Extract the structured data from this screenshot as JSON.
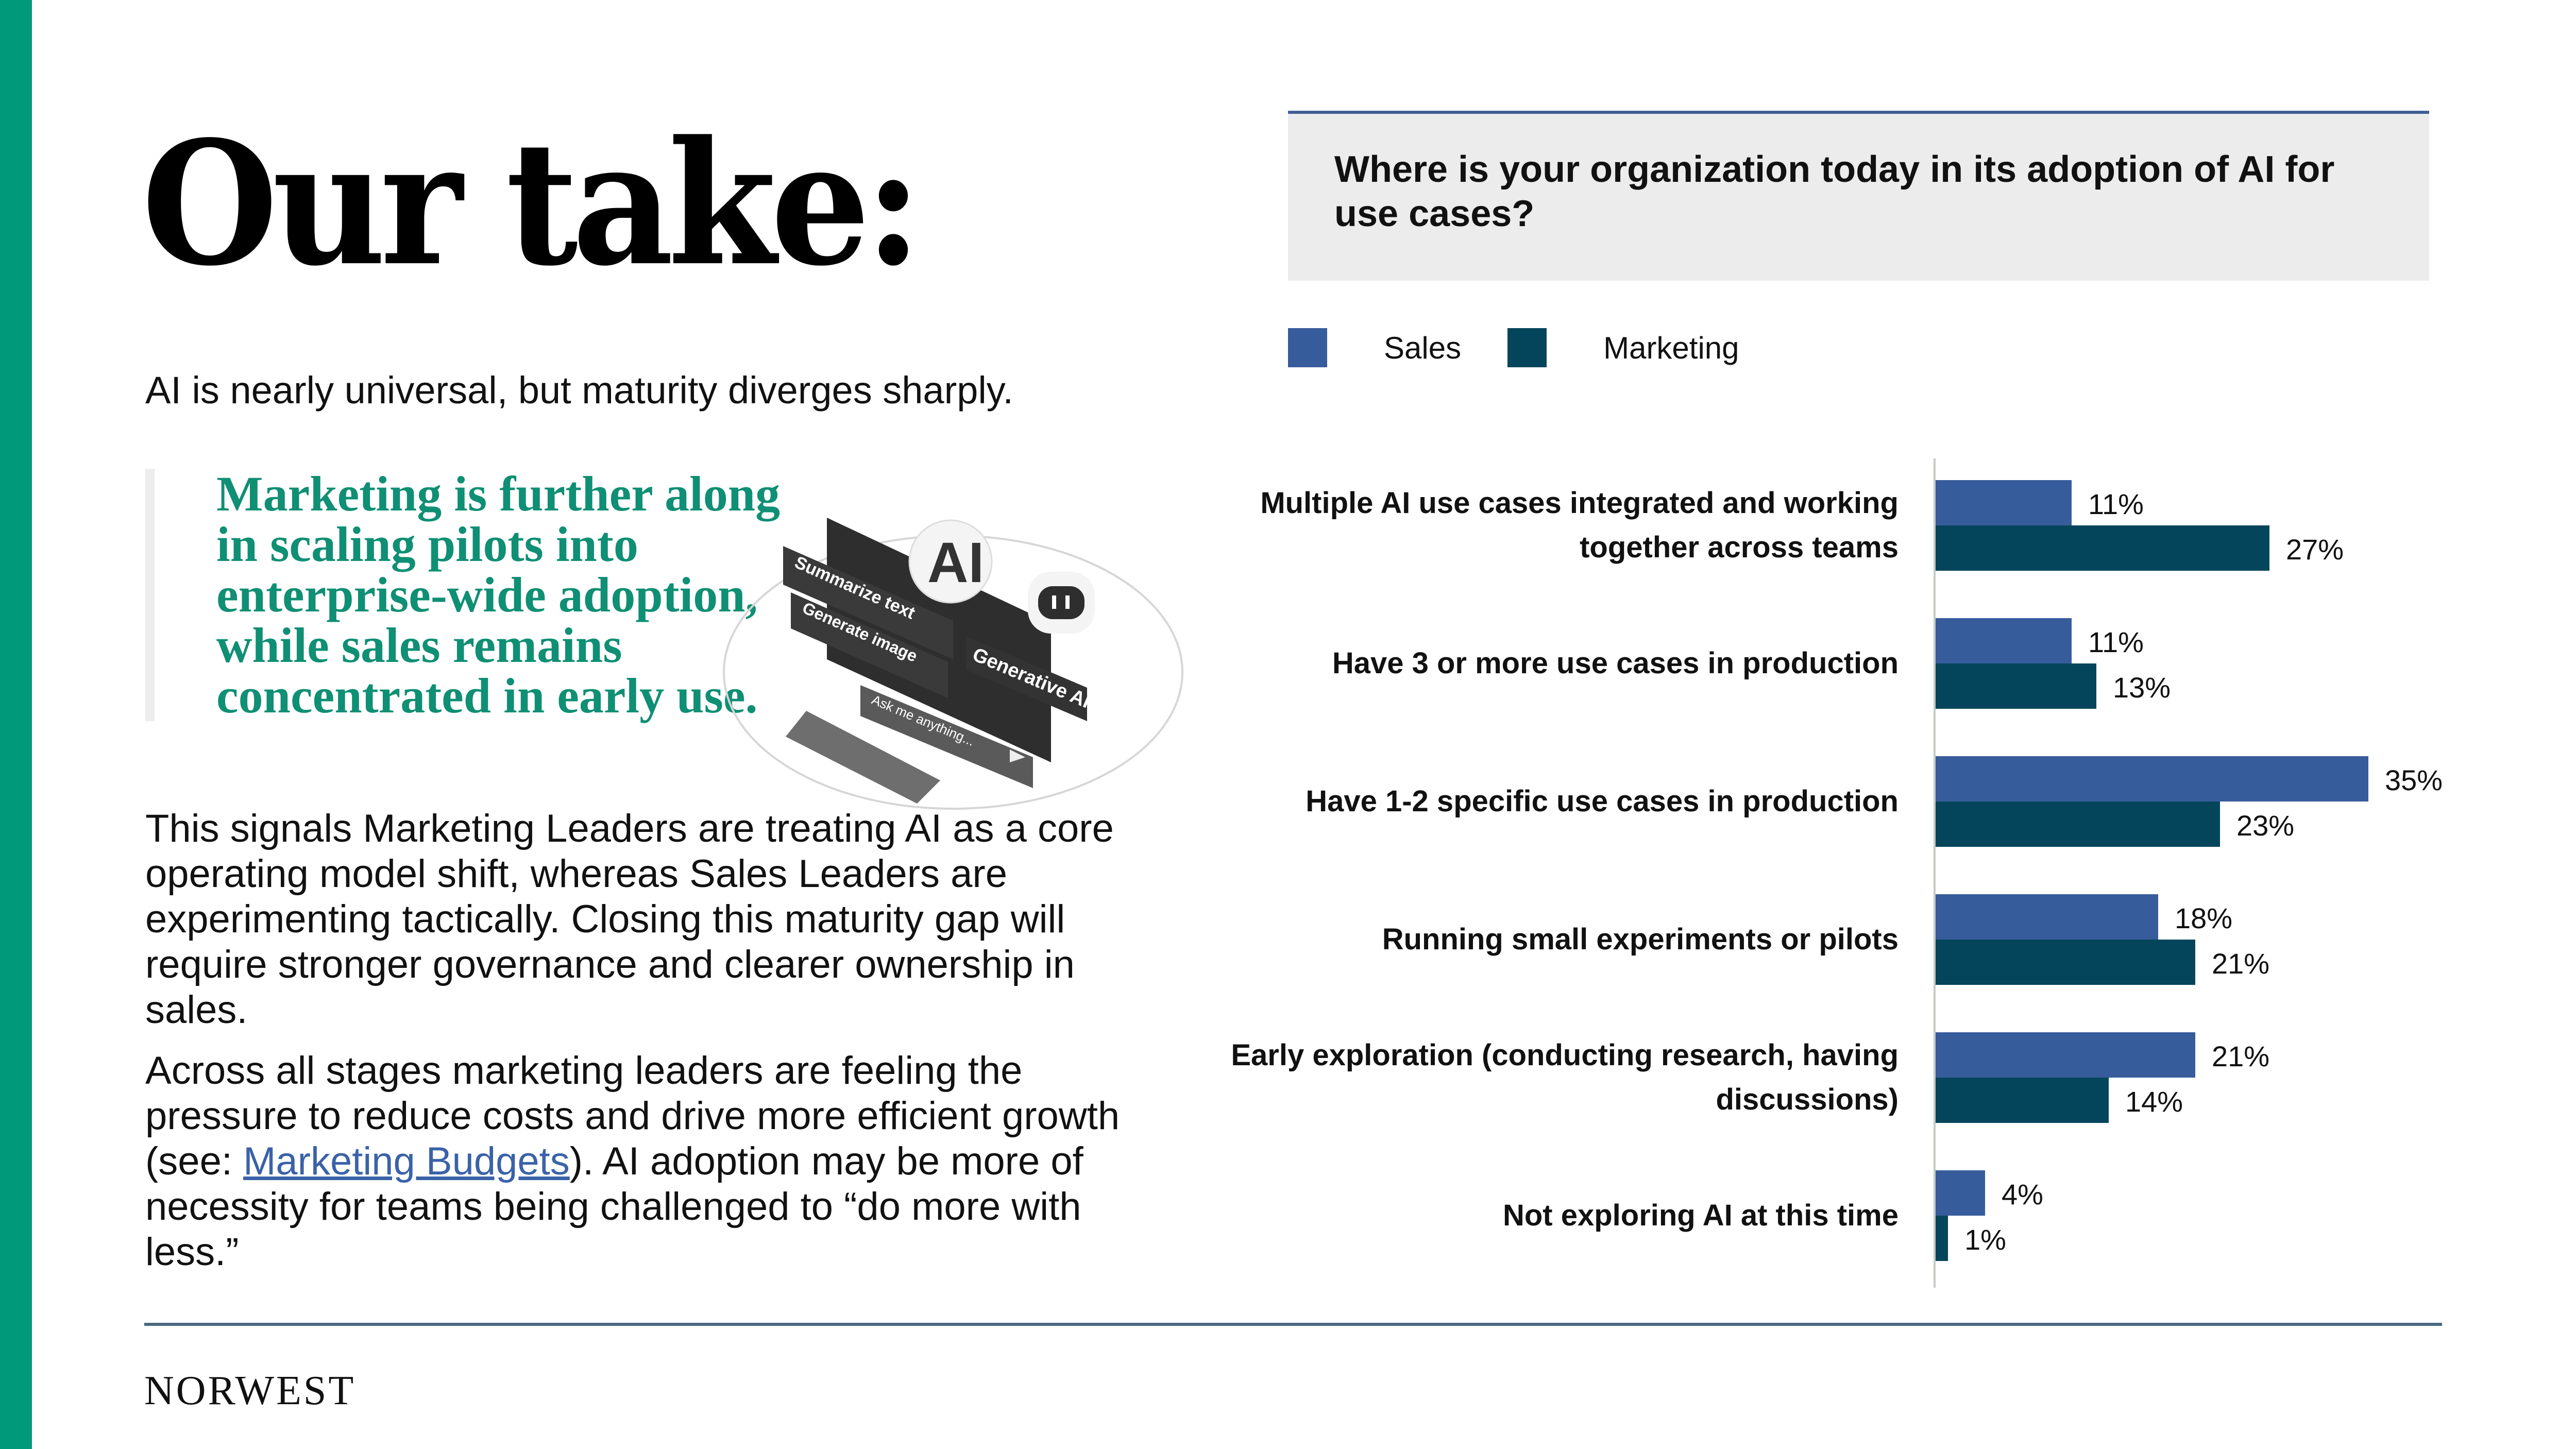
{
  "page": {
    "title": "Our take:",
    "subtitle": "AI is nearly universal, but maturity diverges sharply.",
    "quote": "Marketing is further along in scaling pilots into enterprise-wide adoption, while sales remains concentrated in early use.",
    "paragraph1": "This signals Marketing Leaders are treating AI as a core operating model shift, whereas Sales Leaders are experimenting tactically. Closing this maturity gap will require stronger governance and clearer ownership in sales.",
    "paragraph2_before": "Across all stages marketing leaders are feeling the pressure to reduce costs and drive more efficient growth (see: ",
    "paragraph2_link": "Marketing Budgets",
    "paragraph2_after": "). AI adoption may be more of necessity for teams being challenged to “do more with less.”",
    "logo": "NORWEST",
    "illustration": {
      "labels": [
        "Summarize text",
        "Generate image",
        "AI",
        "Generative AI",
        "Ask me anything..."
      ]
    }
  },
  "colors": {
    "accent_green": "#009a7a",
    "quote_green": "#0f8f74",
    "sales": "#375c9c",
    "marketing": "#04455b",
    "link": "#3a62a8"
  },
  "chart_data": {
    "type": "bar",
    "orientation": "horizontal",
    "title": "Where is your organization today in its adoption of AI for use cases?",
    "xlabel": "",
    "ylabel": "",
    "legend": [
      "Sales",
      "Marketing"
    ],
    "legend_position": "top-left",
    "grid": false,
    "categories": [
      "Multiple AI use cases integrated and working together across teams",
      "Have 3 or more use cases in production",
      "Have 1-2 specific use cases in production",
      "Running small experiments or pilots",
      "Early exploration (conducting research, having discussions)",
      "Not exploring AI at this time"
    ],
    "series": [
      {
        "name": "Sales",
        "values": [
          11,
          11,
          35,
          18,
          21,
          4
        ],
        "labels": [
          "11%",
          "11%",
          "35%",
          "18%",
          "21%",
          "4%"
        ]
      },
      {
        "name": "Marketing",
        "values": [
          27,
          13,
          23,
          21,
          14,
          1
        ],
        "labels": [
          "27%",
          "13%",
          "23%",
          "21%",
          "14%",
          "1%"
        ]
      }
    ],
    "xlim": [
      0,
      40
    ]
  }
}
